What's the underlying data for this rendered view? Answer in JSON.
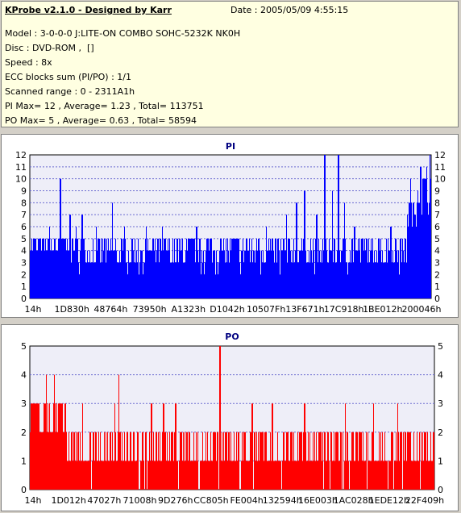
{
  "header": {
    "title": "KProbe v2.1.0 - Designed by Karr",
    "date": "Date : 2005/05/09 4:55:15",
    "lines": [
      "Model : 3-0-0-0 J:LITE-ON COMBO SOHC-5232K NK0H",
      "Disc : DVD-ROM ,  []",
      "Speed : 8x",
      "ECC blocks sum (PI/PO) : 1/1",
      "Scanned range : 0 - 2311A1h",
      "PI Max= 12 , Average= 1.23 , Total= 113751",
      "PO Max= 5 , Average= 0.63 , Total= 58594"
    ]
  },
  "colors": {
    "pi": "#0000ff",
    "po": "#ff0000",
    "plot_bg": "#eeeef8",
    "title": "#000080"
  },
  "chart_data": [
    {
      "type": "bar",
      "title": "PI",
      "ylim": [
        0,
        12
      ],
      "y_ticks": [
        "0",
        "1",
        "2",
        "3",
        "4",
        "5",
        "6",
        "7",
        "8",
        "9",
        "10",
        "11",
        "12"
      ],
      "x_tick_labels": [
        "14h",
        "1D830h",
        "48764h",
        "73950h",
        "A1323h",
        "D1042h",
        "10507Fh",
        "13F671h",
        "17C918h",
        "1BE012h",
        "200046h"
      ],
      "grid": true,
      "series": [
        {
          "color": "#0000ff",
          "segments": [
            {
              "from": 0.0,
              "to": 0.12,
              "base": 4,
              "spread": 1,
              "spikes": [
                [
                  0.012,
                  5
                ],
                [
                  0.025,
                  5
                ],
                [
                  0.048,
                  6
                ],
                [
                  0.075,
                  10
                ],
                [
                  0.1,
                  7
                ],
                [
                  0.115,
                  6
                ]
              ]
            },
            {
              "from": 0.12,
              "to": 0.35,
              "base": 3,
              "spread": 2,
              "spikes": [
                [
                  0.13,
                  7
                ],
                [
                  0.165,
                  6
                ],
                [
                  0.205,
                  8
                ],
                [
                  0.235,
                  6
                ],
                [
                  0.27,
                  5
                ],
                [
                  0.29,
                  6
                ],
                [
                  0.33,
                  6
                ]
              ]
            },
            {
              "from": 0.35,
              "to": 0.6,
              "base": 3,
              "spread": 2,
              "spikes": [
                [
                  0.38,
                  5
                ],
                [
                  0.415,
                  6
                ],
                [
                  0.445,
                  5
                ],
                [
                  0.475,
                  5
                ],
                [
                  0.51,
                  5
                ],
                [
                  0.54,
                  5
                ],
                [
                  0.57,
                  5
                ],
                [
                  0.59,
                  6
                ]
              ]
            },
            {
              "from": 0.6,
              "to": 0.85,
              "base": 3,
              "spread": 2,
              "spikes": [
                [
                  0.64,
                  7
                ],
                [
                  0.665,
                  8
                ],
                [
                  0.685,
                  9
                ],
                [
                  0.715,
                  7
                ],
                [
                  0.735,
                  12
                ],
                [
                  0.755,
                  9
                ],
                [
                  0.77,
                  12
                ],
                [
                  0.785,
                  8
                ],
                [
                  0.81,
                  6
                ],
                [
                  0.83,
                  5
                ]
              ]
            },
            {
              "from": 0.85,
              "to": 0.94,
              "base": 3,
              "spread": 2,
              "spikes": [
                [
                  0.87,
                  5
                ],
                [
                  0.9,
                  6
                ],
                [
                  0.925,
                  5
                ]
              ]
            },
            {
              "from": 0.94,
              "to": 0.965,
              "base": 6,
              "spread": 2,
              "spikes": [
                [
                  0.95,
                  10
                ]
              ]
            },
            {
              "from": 0.965,
              "to": 1.0,
              "base": 8,
              "spread": 2,
              "spikes": [
                [
                  0.975,
                  11
                ],
                [
                  0.99,
                  11
                ],
                [
                  0.998,
                  12
                ]
              ]
            }
          ]
        }
      ]
    },
    {
      "type": "bar",
      "title": "PO",
      "ylim": [
        0,
        5
      ],
      "y_ticks": [
        "0",
        "1",
        "2",
        "3",
        "4",
        "5"
      ],
      "x_tick_labels": [
        "14h",
        "1D012h",
        "47027h",
        "71008h",
        "9D276h",
        "CC805h",
        "FE004h",
        "132594h",
        "16E003h",
        "1AC028h",
        "1EDE12h",
        "22F409h"
      ],
      "grid": true,
      "series": [
        {
          "color": "#ff0000",
          "segments": [
            {
              "from": 0.0,
              "to": 0.09,
              "base": 2,
              "spread": 1,
              "spikes": [
                [
                  0.01,
                  3
                ],
                [
                  0.02,
                  3
                ],
                [
                  0.035,
                  3
                ],
                [
                  0.04,
                  4
                ],
                [
                  0.06,
                  4
                ],
                [
                  0.07,
                  3
                ],
                [
                  0.08,
                  3
                ]
              ]
            },
            {
              "from": 0.09,
              "to": 1.0,
              "base": 1,
              "spread": 1,
              "spikes": [
                [
                  0.13,
                  3
                ],
                [
                  0.21,
                  3
                ],
                [
                  0.22,
                  4
                ],
                [
                  0.3,
                  3
                ],
                [
                  0.33,
                  3
                ],
                [
                  0.36,
                  3
                ],
                [
                  0.47,
                  5
                ],
                [
                  0.55,
                  3
                ],
                [
                  0.6,
                  3
                ],
                [
                  0.68,
                  3
                ],
                [
                  0.73,
                  2
                ],
                [
                  0.78,
                  3
                ],
                [
                  0.85,
                  3
                ],
                [
                  0.91,
                  3
                ],
                [
                  0.95,
                  2
                ]
              ]
            }
          ]
        }
      ]
    }
  ]
}
